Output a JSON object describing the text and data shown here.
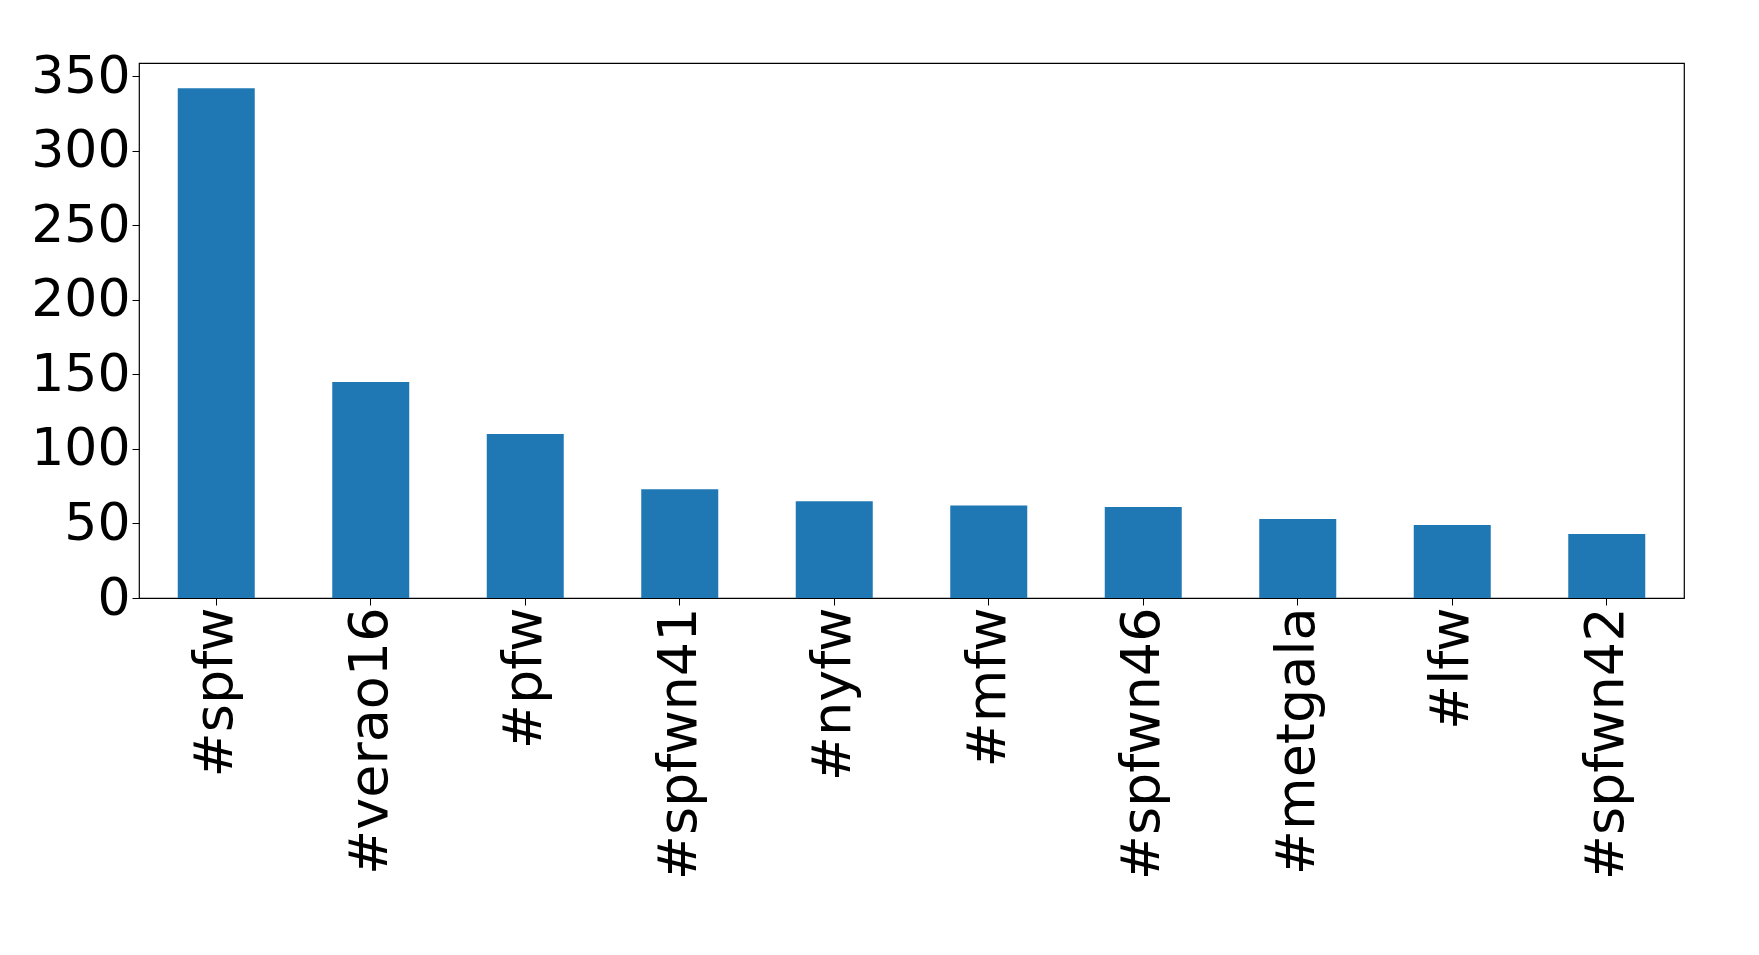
{
  "chart_data": {
    "type": "bar",
    "categories": [
      "#spfw",
      "#verao16",
      "#pfw",
      "#spfwn41",
      "#nyfw",
      "#mfw",
      "#spfwn46",
      "#metgala",
      "#lfw",
      "#spfwn42"
    ],
    "values": [
      342,
      145,
      110,
      73,
      65,
      62,
      61,
      53,
      49,
      43
    ],
    "color": "#1f77b4",
    "ylim": [
      0,
      359
    ],
    "yticks": [
      0,
      50,
      100,
      150,
      200,
      250,
      300,
      350
    ],
    "grid": false
  }
}
